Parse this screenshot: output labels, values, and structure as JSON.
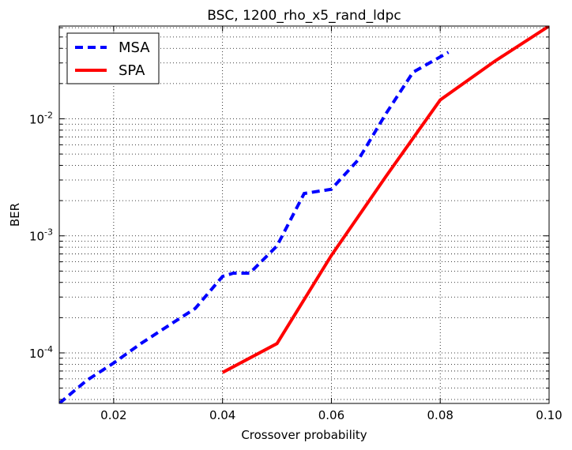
{
  "chart_data": {
    "type": "line",
    "title": "BSC, 1200_rho_x5_rand_ldpc",
    "xlabel": "Crossover probability",
    "ylabel": "BER",
    "xlim": [
      0.01,
      0.1
    ],
    "ylim": [
      3.7e-05,
      0.062
    ],
    "yscale": "log",
    "grid": true,
    "legend_position": "top-left",
    "x_ticks": [
      0.02,
      0.04,
      0.06,
      0.08,
      0.1
    ],
    "x_tick_labels": [
      "0.02",
      "0.04",
      "0.06",
      "0.08",
      "0.10"
    ],
    "y_ticks": [
      {
        "value": 0.0001,
        "base": "10",
        "exp": "-4"
      },
      {
        "value": 0.001,
        "base": "10",
        "exp": "-3"
      },
      {
        "value": 0.01,
        "base": "10",
        "exp": "-2"
      }
    ],
    "series": [
      {
        "name": "MSA",
        "color": "#0000ff",
        "style": "dashed",
        "x": [
          0.01,
          0.015,
          0.02,
          0.025,
          0.03,
          0.035,
          0.04,
          0.042,
          0.045,
          0.05,
          0.055,
          0.06,
          0.065,
          0.07,
          0.075,
          0.0815
        ],
        "y": [
          3.7e-05,
          5.8e-05,
          8.2e-05,
          0.00012,
          0.00017,
          0.00024,
          0.00045,
          0.00048,
          0.00048,
          0.00082,
          0.0023,
          0.0025,
          0.0045,
          0.011,
          0.025,
          0.037
        ]
      },
      {
        "name": "SPA",
        "color": "#ff0000",
        "style": "solid",
        "x": [
          0.04,
          0.05,
          0.06,
          0.07,
          0.08,
          0.09,
          0.1
        ],
        "y": [
          6.8e-05,
          0.00012,
          0.00068,
          0.0032,
          0.0145,
          0.031,
          0.062
        ]
      }
    ]
  }
}
